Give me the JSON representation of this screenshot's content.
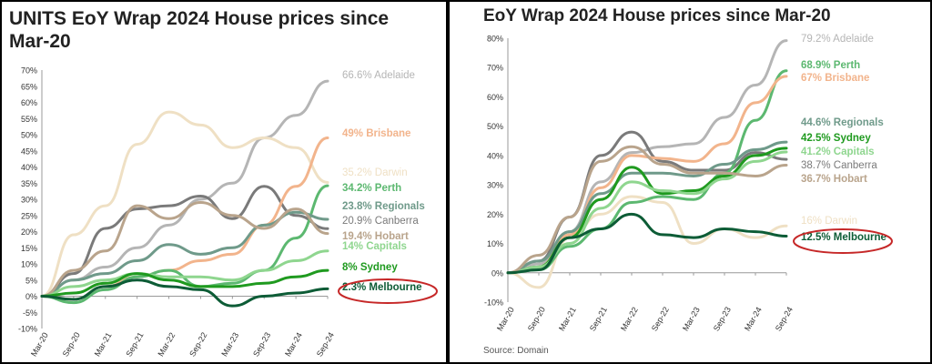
{
  "chart_data": [
    {
      "type": "line",
      "title": "UNITS EoY Wrap 2024 House prices since Mar-20",
      "x": [
        "Mar-20",
        "Sep-20",
        "Mar-21",
        "Sep-21",
        "Mar-22",
        "Sep-22",
        "Mar-23",
        "Sep-23",
        "Mar-24",
        "Sep-24"
      ],
      "ylim": [
        -10,
        70
      ],
      "yticks": [
        -10,
        -5,
        0,
        5,
        10,
        15,
        20,
        25,
        30,
        35,
        40,
        45,
        50,
        55,
        60,
        65,
        70
      ],
      "tick_format": "percent",
      "grid": false,
      "series": [
        {
          "name": "Adelaide",
          "label": "66.6% Adelaide",
          "color": "#b5b5b5",
          "bold": false,
          "values": [
            0,
            5,
            9,
            15,
            22,
            30,
            35,
            49,
            56,
            66.6
          ]
        },
        {
          "name": "Brisbane",
          "label": "49% Brisbane",
          "color": "#f2b48c",
          "bold": true,
          "values": [
            0,
            -1,
            3,
            6,
            8,
            11,
            13,
            22,
            34,
            49
          ]
        },
        {
          "name": "Darwin",
          "label": "35.2% Darwin",
          "color": "#efe0c4",
          "bold": false,
          "values": [
            0,
            19,
            28,
            47,
            57,
            53,
            46,
            49,
            46,
            35.2
          ]
        },
        {
          "name": "Perth",
          "label": "34.2% Perth",
          "color": "#5cb870",
          "bold": true,
          "values": [
            0,
            -2,
            2,
            6,
            8,
            3,
            4,
            8,
            18,
            34.2
          ]
        },
        {
          "name": "Regionals",
          "label": "23.8% Regionals",
          "color": "#6f9a8a",
          "bold": true,
          "values": [
            0,
            5,
            7,
            11,
            16,
            13,
            15,
            22,
            26,
            23.8
          ]
        },
        {
          "name": "Canberra",
          "label": "20.9% Canberra",
          "color": "#7a7a7a",
          "bold": false,
          "values": [
            0,
            7,
            21,
            27,
            28,
            31,
            24,
            34,
            25,
            20.9
          ]
        },
        {
          "name": "Hobart",
          "label": "19.4% Hobart",
          "color": "#b9a48c",
          "bold": true,
          "values": [
            0,
            8,
            14,
            28,
            24,
            29,
            25,
            21,
            27,
            19.4
          ]
        },
        {
          "name": "Capitals",
          "label": "14% Capitals",
          "color": "#8fd68f",
          "bold": true,
          "values": [
            0,
            3,
            5,
            7,
            6,
            6,
            5,
            8,
            11,
            14
          ]
        },
        {
          "name": "Sydney",
          "label": "8% Sydney",
          "color": "#1f9a1f",
          "bold": true,
          "values": [
            0,
            1,
            4,
            7,
            5,
            3,
            3,
            4,
            6,
            8
          ]
        },
        {
          "name": "Melbourne",
          "label": "2.3% Melbourne",
          "color": "#0d5c36",
          "bold": true,
          "values": [
            0,
            -1,
            3,
            5,
            3,
            2,
            -3,
            0,
            1,
            2.3
          ]
        }
      ],
      "highlight": "Melbourne"
    },
    {
      "type": "line",
      "title": "EoY Wrap 2024 House prices since Mar-20",
      "x": [
        "Mar-20",
        "Sep-20",
        "Mar-21",
        "Sep-21",
        "Mar-22",
        "Sep-22",
        "Mar-23",
        "Sep-23",
        "Mar-24",
        "Sep-24"
      ],
      "ylim": [
        -10,
        80
      ],
      "yticks": [
        -10,
        0,
        10,
        20,
        30,
        40,
        50,
        60,
        70,
        80
      ],
      "tick_format": "percent",
      "grid": false,
      "series": [
        {
          "name": "Adelaide",
          "label": "79.2% Adelaide",
          "color": "#b5b5b5",
          "bold": false,
          "values": [
            0,
            3,
            14,
            31,
            41,
            43,
            44,
            53,
            64,
            79.2
          ]
        },
        {
          "name": "Perth",
          "label": "68.9% Perth",
          "color": "#5cb870",
          "bold": true,
          "values": [
            0,
            1,
            9,
            15,
            24,
            26,
            25,
            34,
            52,
            68.9
          ]
        },
        {
          "name": "Brisbane",
          "label": "67% Brisbane",
          "color": "#f2b48c",
          "bold": true,
          "values": [
            0,
            2,
            13,
            29,
            40,
            39,
            38,
            44,
            58,
            67
          ]
        },
        {
          "name": "Regionals",
          "label": "44.6% Regionals",
          "color": "#6f9a8a",
          "bold": true,
          "values": [
            0,
            4,
            14,
            27,
            34,
            34,
            33,
            37,
            42,
            44.6
          ]
        },
        {
          "name": "Sydney",
          "label": "42.5% Sydney",
          "color": "#1f9a1f",
          "bold": true,
          "values": [
            0,
            2,
            12,
            25,
            36,
            27,
            28,
            33,
            40,
            42.5
          ]
        },
        {
          "name": "Capitals",
          "label": "41.2% Capitals",
          "color": "#8fd68f",
          "bold": true,
          "values": [
            0,
            2,
            10,
            22,
            31,
            28,
            27,
            32,
            38,
            41.2
          ]
        },
        {
          "name": "Canberra",
          "label": "38.7% Canberra",
          "color": "#7a7a7a",
          "bold": false,
          "values": [
            0,
            4,
            19,
            40,
            48,
            38,
            35,
            35,
            41,
            38.7
          ]
        },
        {
          "name": "Hobart",
          "label": "36.7% Hobart",
          "color": "#b9a48c",
          "bold": true,
          "values": [
            0,
            6,
            19,
            38,
            43,
            37,
            34,
            34,
            33,
            36.7
          ]
        },
        {
          "name": "Darwin",
          "label": "16% Darwin",
          "color": "#efe0c4",
          "bold": false,
          "values": [
            0,
            -5,
            12,
            20,
            26,
            24,
            10,
            15,
            12,
            16
          ]
        },
        {
          "name": "Melbourne",
          "label": "12.5% Melbourne",
          "color": "#0d5c36",
          "bold": true,
          "values": [
            0,
            1,
            12,
            15,
            20,
            13,
            12,
            15,
            14,
            12.5
          ]
        }
      ],
      "highlight": "Melbourne"
    }
  ],
  "source": "Source: Domain",
  "colors": {
    "highlight_ring": "#c62828",
    "axis": "#999999",
    "tick_text": "#333333"
  }
}
